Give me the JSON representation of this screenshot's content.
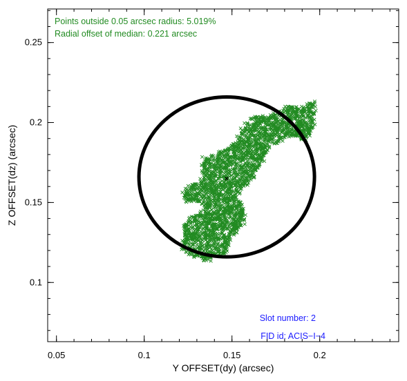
{
  "chart_data": {
    "type": "scatter",
    "xlabel": "Y OFFSET(dy) (arcsec)",
    "ylabel": "Z OFFSET(dz) (arcsec)",
    "xlim": [
      0.045,
      0.245
    ],
    "ylim": [
      0.063,
      0.271
    ],
    "xticks": [
      0.05,
      0.1,
      0.15,
      0.2
    ],
    "xtick_labels": [
      "0.05",
      "0.1",
      "0.15",
      "0.2"
    ],
    "yticks": [
      0.1,
      0.15,
      0.2,
      0.25
    ],
    "ytick_labels": [
      "0.1",
      "0.15",
      "0.2",
      "0.25"
    ],
    "grid": false,
    "annotations": [
      {
        "text": "Points outside 0.05 arcsec radius: 5.019%",
        "color": "#228B22",
        "position": "top-left"
      },
      {
        "text": "Radial offset of median: 0.221 arcsec",
        "color": "#228B22",
        "position": "top-left"
      },
      {
        "text": "Slot number: 2",
        "color": "#1a1aff",
        "position": "bottom-right"
      },
      {
        "text": "FID id: ACIS−I−4",
        "color": "#1a1aff",
        "position": "bottom-right"
      }
    ],
    "median": {
      "x": 0.147,
      "y": 0.165
    },
    "circle": {
      "center_x": 0.147,
      "center_y": 0.166,
      "radius": 0.05
    },
    "series_color": "#228B22",
    "scatter_outline": [
      [
        0.1325,
        0.1155
      ],
      [
        0.1365,
        0.1145
      ],
      [
        0.1395,
        0.1165
      ],
      [
        0.1455,
        0.118
      ],
      [
        0.1475,
        0.124
      ],
      [
        0.15,
        0.13
      ],
      [
        0.1535,
        0.134
      ],
      [
        0.1565,
        0.138
      ],
      [
        0.156,
        0.147
      ],
      [
        0.152,
        0.153
      ],
      [
        0.1545,
        0.158
      ],
      [
        0.16,
        0.164
      ],
      [
        0.165,
        0.172
      ],
      [
        0.171,
        0.184
      ],
      [
        0.178,
        0.19
      ],
      [
        0.183,
        0.193
      ],
      [
        0.191,
        0.189
      ],
      [
        0.196,
        0.196
      ],
      [
        0.1965,
        0.204
      ],
      [
        0.196,
        0.2115
      ],
      [
        0.1945,
        0.213
      ],
      [
        0.19,
        0.2075
      ],
      [
        0.183,
        0.2105
      ],
      [
        0.1775,
        0.207
      ],
      [
        0.17,
        0.203
      ],
      [
        0.163,
        0.204
      ],
      [
        0.157,
        0.197
      ],
      [
        0.152,
        0.187
      ],
      [
        0.145,
        0.182
      ],
      [
        0.14,
        0.179
      ],
      [
        0.134,
        0.177
      ],
      [
        0.134,
        0.169
      ],
      [
        0.131,
        0.161
      ],
      [
        0.1265,
        0.16
      ],
      [
        0.123,
        0.1555
      ],
      [
        0.124,
        0.152
      ],
      [
        0.129,
        0.15
      ],
      [
        0.1355,
        0.15
      ],
      [
        0.134,
        0.144
      ],
      [
        0.127,
        0.141
      ],
      [
        0.1235,
        0.136
      ],
      [
        0.124,
        0.131
      ],
      [
        0.122,
        0.124
      ],
      [
        0.123,
        0.119
      ]
    ],
    "point_count": 2600
  }
}
